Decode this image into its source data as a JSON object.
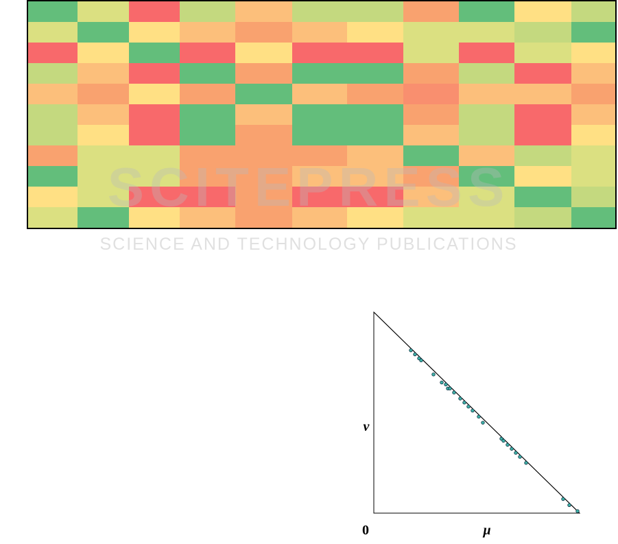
{
  "heatmap": {
    "cells": [
      [
        "#63be7b",
        "#dbe081",
        "#f8696b",
        "#c4d97f",
        "#fcbf7b",
        "#c4d97f",
        "#c4d97f",
        "#f9a26f",
        "#63be7b",
        "#ffe084",
        "#c4d97f"
      ],
      [
        "#dbe081",
        "#63be7b",
        "#ffe084",
        "#fcbf7b",
        "#f9a26f",
        "#fcbf7b",
        "#ffe084",
        "#dbe081",
        "#dbe081",
        "#c4d97f",
        "#63be7b"
      ],
      [
        "#f8696b",
        "#ffe084",
        "#63be7b",
        "#f8696b",
        "#ffe084",
        "#f8696b",
        "#f8696b",
        "#dbe081",
        "#f8696b",
        "#dbe081",
        "#ffe084"
      ],
      [
        "#c4d97f",
        "#fcbf7b",
        "#f8696b",
        "#63be7b",
        "#f9a26f",
        "#63be7b",
        "#63be7b",
        "#f9a26f",
        "#c4d97f",
        "#f8696b",
        "#fcbf7b"
      ],
      [
        "#fcbf7b",
        "#f9a26f",
        "#ffe084",
        "#f9a26f",
        "#63be7b",
        "#fcbf7b",
        "#f9a26f",
        "#f98f6f",
        "#fcbf7b",
        "#fcbf7b",
        "#f9a26f"
      ],
      [
        "#c4d97f",
        "#fcbf7b",
        "#f8696b",
        "#63be7b",
        "#fcbf7b",
        "#63be7b",
        "#63be7b",
        "#f9a26f",
        "#c4d97f",
        "#f8696b",
        "#fcbf7b"
      ],
      [
        "#c4d97f",
        "#ffe084",
        "#f8696b",
        "#63be7b",
        "#f9a26f",
        "#63be7b",
        "#63be7b",
        "#fcbf7b",
        "#c4d97f",
        "#f8696b",
        "#ffe084"
      ],
      [
        "#f9a26f",
        "#dbe081",
        "#dbe081",
        "#f9a26f",
        "#f9a26f",
        "#f9a26f",
        "#fcbf7b",
        "#63be7b",
        "#fcbf7b",
        "#c4d97f",
        "#dbe081"
      ],
      [
        "#63be7b",
        "#dbe081",
        "#dbe081",
        "#f9a26f",
        "#f9a26f",
        "#fcbf7b",
        "#fcbf7b",
        "#f9a26f",
        "#63be7b",
        "#ffe084",
        "#dbe081"
      ],
      [
        "#ffe084",
        "#dbe081",
        "#f8696b",
        "#f8696b",
        "#f9a26f",
        "#f8696b",
        "#f8696b",
        "#fcbf7b",
        "#dbe081",
        "#63be7b",
        "#c4d97f"
      ],
      [
        "#dbe081",
        "#63be7b",
        "#ffe084",
        "#fcbf7b",
        "#f9a26f",
        "#fcbf7b",
        "#ffe084",
        "#dbe081",
        "#dbe081",
        "#c4d97f",
        "#63be7b"
      ]
    ]
  },
  "watermark": {
    "title": "SCITEPRESS",
    "subtitle": "SCIENCE AND TECHNOLOGY PUBLICATIONS"
  },
  "chart_data": {
    "type": "scatter",
    "x_label": "μ",
    "y_label": "v",
    "origin_label": "0",
    "xlim": [
      0,
      1
    ],
    "ylim": [
      0,
      1
    ],
    "color": "#3fb3a8",
    "x": [
      0.18,
      0.2,
      0.22,
      0.23,
      0.29,
      0.33,
      0.35,
      0.36,
      0.37,
      0.39,
      0.42,
      0.44,
      0.46,
      0.48,
      0.51,
      0.53,
      0.62,
      0.63,
      0.65,
      0.67,
      0.69,
      0.71,
      0.74,
      0.92,
      0.95,
      0.99
    ],
    "values": [
      0.81,
      0.79,
      0.77,
      0.76,
      0.69,
      0.65,
      0.64,
      0.62,
      0.62,
      0.6,
      0.57,
      0.55,
      0.53,
      0.51,
      0.48,
      0.45,
      0.37,
      0.36,
      0.34,
      0.32,
      0.3,
      0.28,
      0.25,
      0.07,
      0.04,
      0.01
    ]
  }
}
